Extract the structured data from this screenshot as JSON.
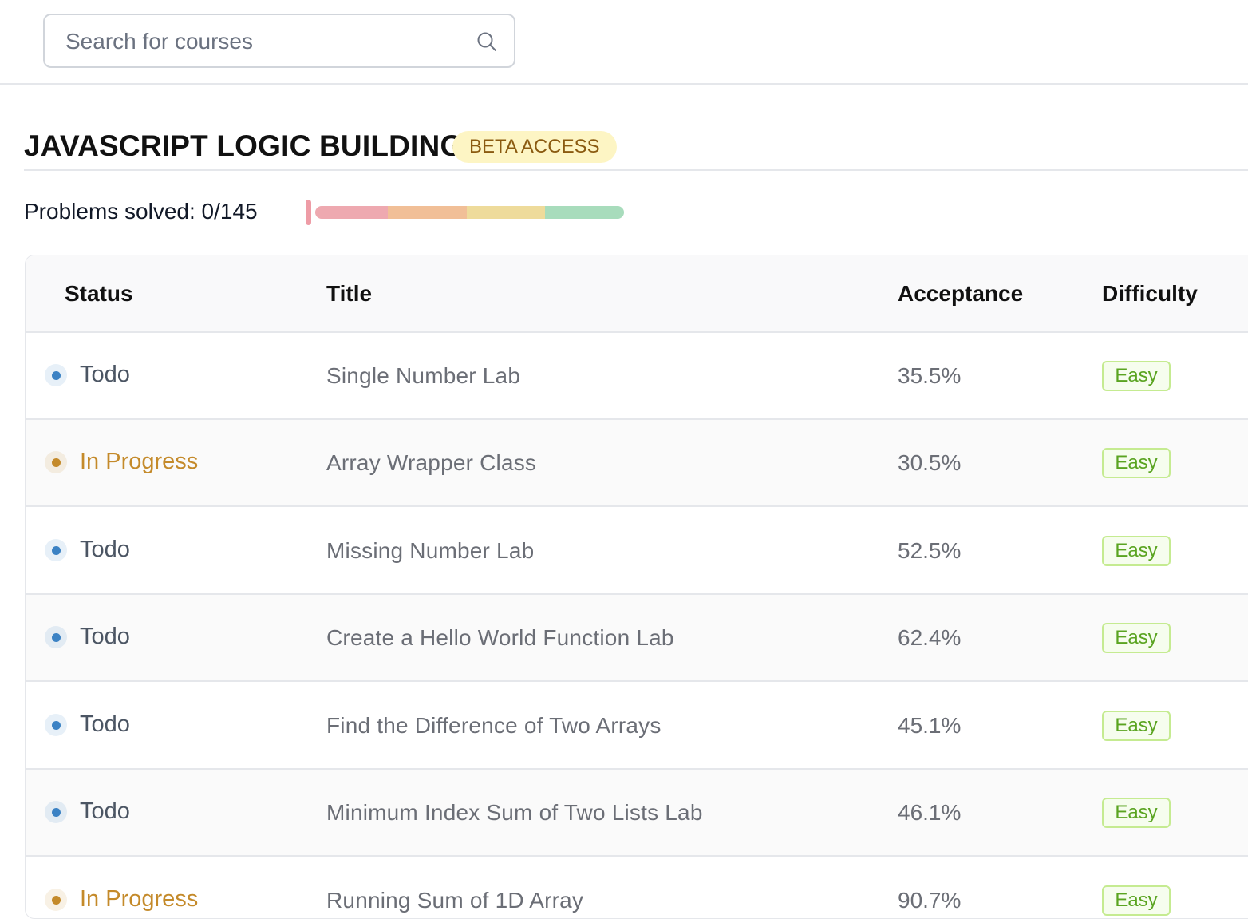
{
  "search": {
    "placeholder": "Search for courses"
  },
  "course": {
    "title": "JAVASCRIPT LOGIC BUILDING",
    "badge": "BETA ACCESS"
  },
  "progress": {
    "label": "Problems solved: 0/145",
    "solved": 0,
    "total": 145,
    "segment_colors": [
      "#eea9b0",
      "#f1bf97",
      "#eedb9b",
      "#a8dcbc"
    ]
  },
  "table": {
    "headers": {
      "status": "Status",
      "title": "Title",
      "acceptance": "Acceptance",
      "difficulty": "Difficulty"
    },
    "rows": [
      {
        "status": "Todo",
        "status_color": "#3b82c4",
        "title": "Single Number Lab",
        "acceptance": "35.5%",
        "difficulty": "Easy"
      },
      {
        "status": "In Progress",
        "status_color": "#c48a2a",
        "title": "Array Wrapper Class",
        "acceptance": "30.5%",
        "difficulty": "Easy"
      },
      {
        "status": "Todo",
        "status_color": "#3b82c4",
        "title": "Missing Number Lab",
        "acceptance": "52.5%",
        "difficulty": "Easy"
      },
      {
        "status": "Todo",
        "status_color": "#3b82c4",
        "title": "Create a Hello World Function Lab",
        "acceptance": "62.4%",
        "difficulty": "Easy"
      },
      {
        "status": "Todo",
        "status_color": "#3b82c4",
        "title": "Find the Difference of Two Arrays",
        "acceptance": "45.1%",
        "difficulty": "Easy"
      },
      {
        "status": "Todo",
        "status_color": "#3b82c4",
        "title": "Minimum Index Sum of Two Lists Lab",
        "acceptance": "46.1%",
        "difficulty": "Easy"
      },
      {
        "status": "In Progress",
        "status_color": "#c48a2a",
        "title": "Running Sum of 1D Array",
        "acceptance": "90.7%",
        "difficulty": "Easy"
      }
    ]
  }
}
